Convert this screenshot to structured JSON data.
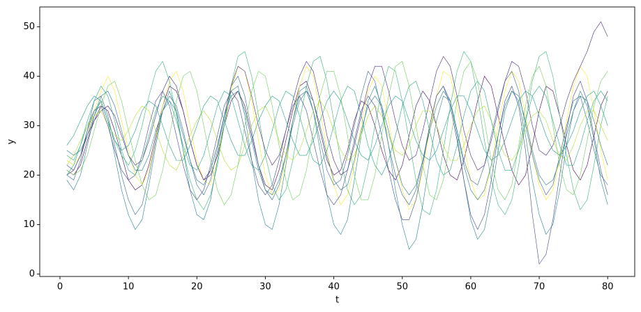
{
  "chart_data": {
    "type": "line",
    "x_label": "t",
    "y_label": "y",
    "x": [
      1,
      2,
      3,
      4,
      5,
      6,
      7,
      8,
      9,
      10,
      11,
      12,
      13,
      14,
      15,
      16,
      17,
      18,
      19,
      20,
      21,
      22,
      23,
      24,
      25,
      26,
      27,
      28,
      29,
      30,
      31,
      32,
      33,
      34,
      35,
      36,
      37,
      38,
      39,
      40,
      41,
      42,
      43,
      44,
      45,
      46,
      47,
      48,
      49,
      50,
      51,
      52,
      53,
      54,
      55,
      56,
      57,
      58,
      59,
      60,
      61,
      62,
      63,
      64,
      65,
      66,
      67,
      68,
      69,
      70,
      71,
      72,
      73,
      74,
      75,
      76,
      77,
      78,
      79,
      80
    ],
    "xlim": [
      -2.95,
      83.95
    ],
    "xticks": [
      0,
      10,
      20,
      30,
      40,
      50,
      60,
      70,
      80
    ],
    "ylim": [
      -0.5,
      54
    ],
    "yticks": [
      0,
      10,
      20,
      30,
      40,
      50
    ],
    "grid": false,
    "series": [
      {
        "color": "#440154",
        "values": [
          21,
          20,
          22,
          27,
          31,
          34,
          33,
          29,
          24,
          19,
          17,
          18,
          22,
          28,
          34,
          38,
          37,
          33,
          27,
          22,
          19,
          20,
          24,
          30,
          35,
          37,
          34,
          28,
          22,
          18,
          17,
          21,
          27,
          33,
          38,
          39,
          35,
          29,
          23,
          20,
          21,
          25,
          31,
          35,
          34,
          30,
          25,
          21,
          19,
          22,
          28,
          34,
          37,
          35,
          30,
          24,
          20,
          19,
          23,
          29,
          35,
          40,
          38,
          32,
          26,
          21,
          18,
          20,
          26,
          33,
          38,
          37,
          32,
          26,
          21,
          19,
          22,
          28,
          34,
          37
        ]
      },
      {
        "color": "#fde725",
        "values": [
          23,
          22,
          24,
          28,
          33,
          37,
          40,
          37,
          31,
          25,
          20,
          18,
          21,
          27,
          34,
          39,
          41,
          37,
          30,
          23,
          19,
          18,
          23,
          30,
          37,
          42,
          41,
          35,
          27,
          20,
          16,
          17,
          23,
          31,
          38,
          42,
          40,
          33,
          25,
          18,
          14,
          16,
          22,
          30,
          37,
          40,
          38,
          31,
          23,
          17,
          13,
          15,
          21,
          29,
          36,
          41,
          40,
          34,
          26,
          19,
          15,
          16,
          22,
          30,
          37,
          41,
          39,
          32,
          24,
          18,
          15,
          17,
          23,
          31,
          38,
          42,
          40,
          33,
          25,
          19
        ]
      },
      {
        "color": "#31688e",
        "values": [
          20,
          19,
          23,
          29,
          35,
          36,
          32,
          26,
          20,
          15,
          12,
          14,
          20,
          27,
          33,
          36,
          34,
          29,
          23,
          18,
          16,
          19,
          25,
          32,
          38,
          40,
          36,
          29,
          22,
          17,
          15,
          18,
          24,
          31,
          36,
          37,
          33,
          27,
          21,
          18,
          19,
          24,
          30,
          36,
          41,
          39,
          33,
          26,
          20,
          16,
          14,
          17,
          23,
          30,
          36,
          38,
          35,
          29,
          23,
          19,
          18,
          22,
          28,
          34,
          39,
          41,
          37,
          30,
          24,
          19,
          16,
          18,
          24,
          30,
          35,
          36,
          31,
          25,
          20,
          18
        ]
      },
      {
        "color": "#35b779",
        "values": [
          24,
          23,
          26,
          30,
          33,
          35,
          31,
          27,
          24,
          22,
          25,
          30,
          36,
          41,
          43,
          39,
          32,
          25,
          19,
          15,
          13,
          16,
          22,
          30,
          38,
          44,
          45,
          40,
          32,
          24,
          18,
          15,
          17,
          23,
          31,
          38,
          43,
          44,
          39,
          31,
          23,
          17,
          14,
          16,
          22,
          30,
          37,
          42,
          41,
          35,
          27,
          19,
          13,
          12,
          17,
          25,
          34,
          41,
          45,
          43,
          36,
          27,
          19,
          14,
          12,
          15,
          22,
          31,
          39,
          44,
          45,
          40,
          32,
          24,
          17,
          13,
          15,
          22,
          30,
          36
        ]
      },
      {
        "color": "#482878",
        "values": [
          20,
          21,
          24,
          28,
          31,
          33,
          34,
          32,
          28,
          24,
          22,
          23,
          27,
          32,
          37,
          40,
          38,
          33,
          27,
          22,
          19,
          21,
          26,
          32,
          38,
          42,
          41,
          36,
          30,
          25,
          22,
          24,
          29,
          35,
          40,
          43,
          41,
          35,
          28,
          23,
          20,
          21,
          26,
          32,
          38,
          42,
          42,
          37,
          31,
          26,
          23,
          24,
          29,
          35,
          41,
          44,
          42,
          36,
          29,
          24,
          21,
          22,
          27,
          33,
          39,
          43,
          42,
          37,
          30,
          25,
          24,
          26,
          30,
          35,
          39,
          42,
          45,
          49,
          51,
          48
        ]
      },
      {
        "color": "#26828e",
        "values": [
          19,
          17,
          20,
          26,
          32,
          35,
          31,
          24,
          17,
          12,
          9,
          11,
          18,
          26,
          33,
          37,
          33,
          25,
          17,
          12,
          11,
          15,
          23,
          31,
          37,
          38,
          32,
          23,
          15,
          10,
          9,
          14,
          22,
          31,
          37,
          38,
          33,
          25,
          16,
          10,
          8,
          11,
          19,
          28,
          35,
          38,
          34,
          26,
          17,
          10,
          5,
          7,
          14,
          23,
          31,
          36,
          35,
          28,
          19,
          11,
          7,
          9,
          16,
          25,
          33,
          37,
          35,
          28,
          19,
          12,
          8,
          10,
          17,
          26,
          33,
          37,
          34,
          27,
          19,
          14
        ]
      },
      {
        "color": "#b5de2b",
        "values": [
          22,
          24,
          27,
          30,
          32,
          33,
          30,
          28,
          27,
          29,
          32,
          34,
          33,
          29,
          25,
          22,
          21,
          24,
          28,
          31,
          33,
          31,
          27,
          23,
          21,
          22,
          26,
          30,
          33,
          34,
          31,
          27,
          24,
          23,
          25,
          29,
          33,
          35,
          33,
          29,
          25,
          23,
          24,
          28,
          32,
          34,
          32,
          28,
          25,
          24,
          26,
          30,
          33,
          33,
          30,
          26,
          23,
          23,
          26,
          30,
          33,
          34,
          31,
          27,
          24,
          23,
          25,
          29,
          32,
          33,
          31,
          27,
          24,
          23,
          26,
          30,
          33,
          33,
          30,
          27
        ]
      },
      {
        "color": "#3e4989",
        "values": [
          22,
          21,
          24,
          29,
          33,
          34,
          30,
          25,
          21,
          19,
          20,
          24,
          30,
          35,
          37,
          34,
          28,
          22,
          17,
          15,
          17,
          22,
          28,
          34,
          37,
          35,
          29,
          23,
          18,
          16,
          18,
          23,
          29,
          34,
          36,
          33,
          27,
          21,
          16,
          14,
          16,
          21,
          27,
          33,
          36,
          34,
          28,
          21,
          15,
          11,
          11,
          15,
          22,
          30,
          36,
          38,
          34,
          27,
          19,
          12,
          9,
          12,
          19,
          28,
          35,
          38,
          34,
          25,
          12,
          2,
          4,
          11,
          20,
          29,
          36,
          39,
          35,
          28,
          21,
          16
        ]
      },
      {
        "color": "#1f9e89",
        "values": [
          26,
          28,
          31,
          34,
          36,
          35,
          31,
          27,
          25,
          26,
          29,
          33,
          35,
          34,
          30,
          26,
          23,
          23,
          26,
          30,
          34,
          36,
          35,
          31,
          27,
          24,
          24,
          27,
          31,
          34,
          36,
          35,
          31,
          27,
          24,
          24,
          27,
          31,
          35,
          37,
          35,
          31,
          27,
          24,
          23,
          26,
          30,
          34,
          36,
          35,
          31,
          27,
          24,
          23,
          25,
          29,
          33,
          36,
          36,
          33,
          29,
          25,
          23,
          24,
          27,
          31,
          35,
          37,
          36,
          32,
          28,
          25,
          24,
          26,
          29,
          33,
          36,
          37,
          34,
          30
        ]
      },
      {
        "color": "#6ece58",
        "values": [
          21,
          20,
          21,
          24,
          29,
          34,
          38,
          39,
          35,
          29,
          23,
          18,
          15,
          16,
          21,
          28,
          35,
          40,
          41,
          37,
          30,
          23,
          17,
          14,
          16,
          22,
          30,
          37,
          41,
          40,
          34,
          26,
          19,
          15,
          16,
          21,
          29,
          36,
          41,
          41,
          36,
          28,
          20,
          15,
          15,
          20,
          28,
          36,
          42,
          43,
          38,
          30,
          22,
          16,
          15,
          19,
          27,
          35,
          41,
          43,
          39,
          31,
          23,
          17,
          15,
          18,
          26,
          34,
          40,
          42,
          38,
          30,
          22,
          17,
          16,
          20,
          27,
          34,
          39,
          41
        ]
      },
      {
        "color": "#2a788e",
        "values": [
          25,
          24,
          25,
          28,
          32,
          36,
          37,
          34,
          29,
          24,
          21,
          21,
          24,
          29,
          33,
          35,
          33,
          28,
          23,
          19,
          18,
          21,
          26,
          32,
          36,
          37,
          33,
          27,
          21,
          17,
          16,
          19,
          24,
          30,
          35,
          37,
          35,
          30,
          24,
          19,
          17,
          18,
          23,
          29,
          34,
          36,
          34,
          29,
          23,
          18,
          16,
          18,
          23,
          29,
          34,
          37,
          35,
          29,
          22,
          17,
          15,
          17,
          22,
          28,
          34,
          37,
          36,
          31,
          25,
          20,
          18,
          19,
          23,
          28,
          33,
          36,
          35,
          31,
          26,
          22
        ]
      },
      {
        "color": "#22a884",
        "values": [
          20,
          22,
          26,
          31,
          35,
          38,
          36,
          31,
          25,
          21,
          20,
          23,
          28,
          33,
          36,
          35,
          31,
          26,
          22,
          21,
          24,
          29,
          34,
          37,
          36,
          31,
          26,
          22,
          21,
          24,
          29,
          34,
          37,
          36,
          32,
          27,
          23,
          22,
          25,
          30,
          35,
          38,
          37,
          32,
          26,
          22,
          20,
          23,
          28,
          34,
          38,
          39,
          35,
          29,
          23,
          20,
          21,
          26,
          32,
          37,
          39,
          37,
          31,
          25,
          21,
          21,
          25,
          31,
          36,
          38,
          36,
          31,
          26,
          22,
          22,
          26,
          31,
          35,
          37,
          35
        ]
      }
    ]
  }
}
